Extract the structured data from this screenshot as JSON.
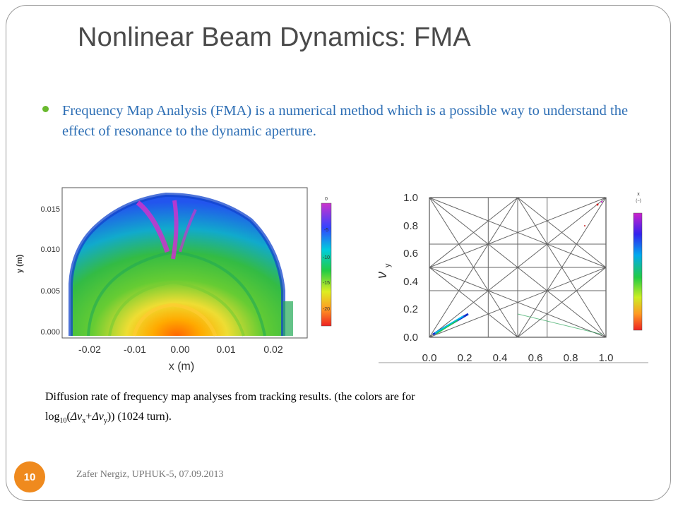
{
  "title": "Nonlinear Beam Dynamics: FMA",
  "bullet": "Frequency Map Analysis (FMA) is a numerical method which is a possible way to understand the effect of resonance to the dynamic aperture.",
  "caption": {
    "line1": "Diffusion rate of frequency map analyses from tracking results.  (the colors are  for",
    "log": "log",
    "sub10": "10",
    "open": "(",
    "dnu": "Δν",
    "subx": "x",
    "plus": "+",
    "suby": "y",
    "close": "))   (1024 turn)."
  },
  "footer": "Zafer Nergiz, UPHUK-5, 07.09.2013",
  "page_number": "10",
  "colors": {
    "title": "#4a4a4a",
    "bullet_text": "#2e6fb5",
    "bullet_dot": "#69b92e",
    "badge": "#ef8a1e"
  },
  "chart_data": [
    {
      "type": "heatmap",
      "description_panel": "frequency map in x-y space",
      "xlabel": "x   (m)",
      "ylabel": "y (m)",
      "x_ticks": [
        "-0.02",
        "-0.01",
        "0.00",
        "0.01",
        "0.02"
      ],
      "y_ticks": [
        "0.000",
        "0.005",
        "0.010",
        "0.015"
      ],
      "colorbar_ticks": [
        "0",
        "-5",
        "-10",
        "-15",
        "-20"
      ],
      "xlim": [
        -0.026,
        0.026
      ],
      "ylim": [
        0,
        0.018
      ]
    },
    {
      "type": "scatter",
      "description_panel": "tune diagram",
      "ylabel": "ν",
      "ylabel_sub": "y",
      "x_ticks": [
        "0.0",
        "0.2",
        "0.4",
        "0.6",
        "0.8",
        "1.0"
      ],
      "y_ticks": [
        "0.0",
        "0.2",
        "0.4",
        "0.6",
        "0.8",
        "1.0"
      ],
      "colorbar_title": "x",
      "colorbar_subtitle": "(−)",
      "xlim": [
        0,
        1
      ],
      "ylim": [
        0,
        1
      ]
    }
  ]
}
